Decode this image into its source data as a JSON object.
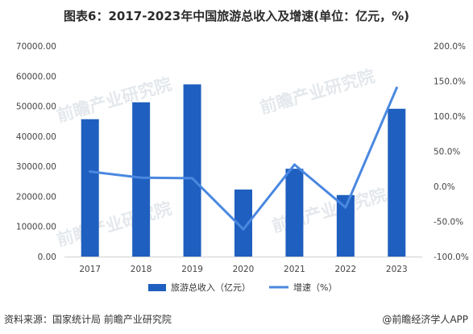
{
  "title": "图表6：2017-2023年中国旅游总收入及增速(单位：亿元，%)",
  "source": "资料来源：国家统计局 前瞻产业研究院",
  "brand": "@前瞻经济学人APP",
  "watermark": "前瞻产业研究院",
  "colors": {
    "bar": "#1f5fbf",
    "line": "#4a88e0",
    "axis_text": "#444444",
    "grid": "#e6e6e6"
  },
  "chart_data": {
    "type": "bar+line",
    "categories": [
      "2017",
      "2018",
      "2019",
      "2020",
      "2021",
      "2022",
      "2023"
    ],
    "series": [
      {
        "name": "旅游总收入（亿元）",
        "type": "bar",
        "axis": "left",
        "values": [
          45660.77,
          51278.29,
          57250.92,
          22286.3,
          29190.7,
          20444.0,
          49133.0
        ]
      },
      {
        "name": "增速（%）",
        "type": "line",
        "axis": "right",
        "values": [
          21.1,
          12.3,
          11.6,
          -61.1,
          31.0,
          -30.0,
          140.3
        ]
      }
    ],
    "y_left": {
      "min": 0,
      "max": 70000,
      "step": 10000,
      "tick_labels": [
        "0.00",
        "10000.00",
        "20000.00",
        "30000.00",
        "40000.00",
        "50000.00",
        "60000.00",
        "70000.00"
      ]
    },
    "y_right": {
      "min": -100,
      "max": 200,
      "step": 50,
      "tick_labels": [
        "-100.0%",
        "-50.0%",
        "0.0%",
        "50.0%",
        "100.0%",
        "150.0%",
        "200.0%"
      ]
    },
    "legend_position": "bottom",
    "grid": false
  }
}
